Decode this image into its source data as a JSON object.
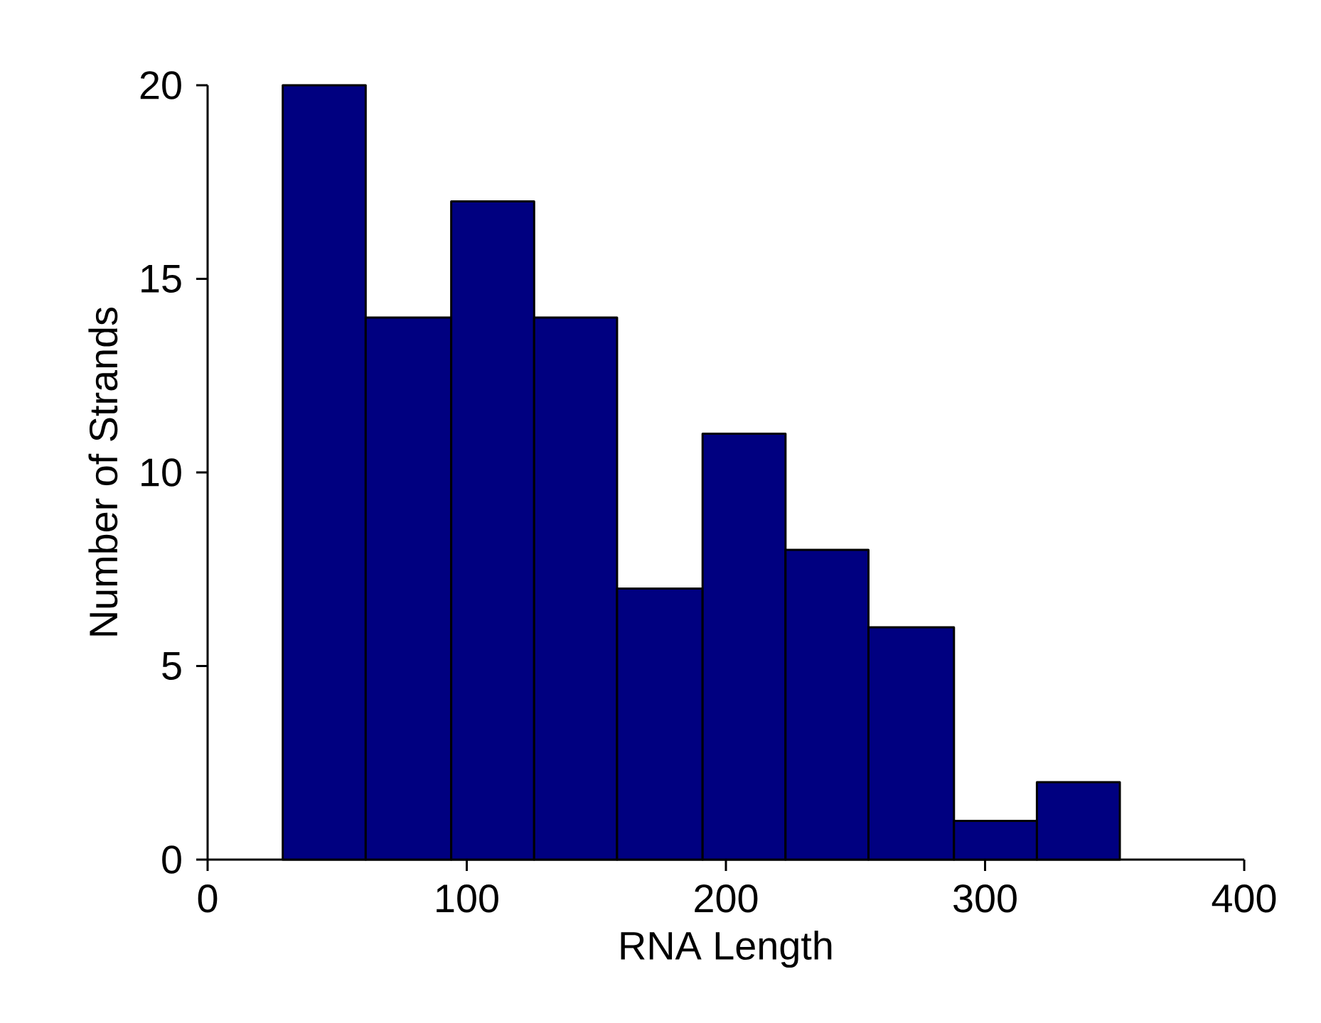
{
  "chart_data": {
    "type": "histogram",
    "xlabel": "RNA Length",
    "ylabel": "Number of Strands",
    "bins": [
      29,
      61,
      94,
      126,
      158,
      191,
      223,
      255,
      288,
      320,
      352
    ],
    "values": [
      20,
      14,
      17,
      14,
      7,
      11,
      8,
      6,
      1,
      2
    ],
    "color": "#000080",
    "xlim": [
      0,
      400
    ],
    "xticks": [
      0,
      100,
      200,
      300,
      400
    ],
    "ylim": [
      0,
      20
    ],
    "yticks": [
      0,
      5,
      10,
      15,
      20
    ]
  }
}
